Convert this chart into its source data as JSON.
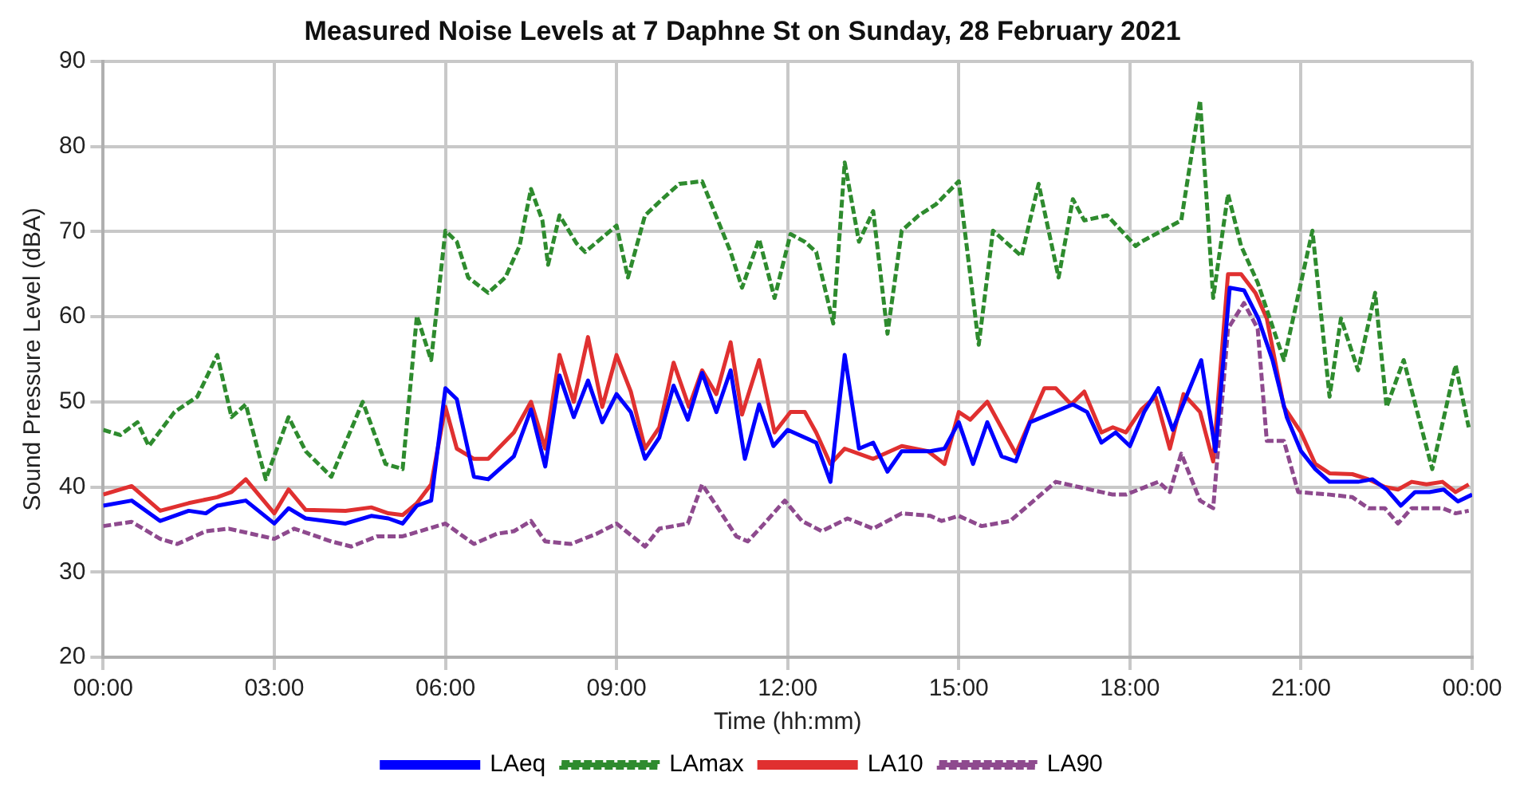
{
  "chart_data": {
    "type": "line",
    "title": "Measured Noise Levels at 7 Daphne St on Sunday, 28 February 2021",
    "xlabel": "Time (hh:mm)",
    "ylabel": "Sound Pressure Level (dBA)",
    "xlim": [
      0,
      24
    ],
    "xticks": [
      {
        "value": 0,
        "label": "00:00"
      },
      {
        "value": 3,
        "label": "03:00"
      },
      {
        "value": 6,
        "label": "06:00"
      },
      {
        "value": 9,
        "label": "09:00"
      },
      {
        "value": 12,
        "label": "12:00"
      },
      {
        "value": 15,
        "label": "15:00"
      },
      {
        "value": 18,
        "label": "18:00"
      },
      {
        "value": 21,
        "label": "21:00"
      },
      {
        "value": 24,
        "label": "00:00"
      }
    ],
    "ylim": [
      20,
      90
    ],
    "yticks": [
      20,
      30,
      40,
      50,
      60,
      70,
      80,
      90
    ],
    "grid": true,
    "legend": "bottom",
    "marker": "none",
    "series": [
      {
        "name": "LAeq",
        "color": "#0000ff",
        "line_style": "solid",
        "x": [
          0,
          0.5,
          1,
          1.5,
          1.8,
          2,
          2.25,
          2.5,
          3,
          3.25,
          3.55,
          4.25,
          4.7,
          5,
          5.25,
          5.5,
          5.75,
          6,
          6.2,
          6.5,
          6.75,
          7.2,
          7.5,
          7.75,
          8,
          8.25,
          8.5,
          8.75,
          9,
          9.25,
          9.5,
          9.75,
          10,
          10.25,
          10.5,
          10.75,
          11,
          11.25,
          11.5,
          11.75,
          12,
          12.5,
          12.75,
          13,
          13.25,
          13.5,
          13.75,
          14,
          14.5,
          14.75,
          15,
          15.25,
          15.5,
          15.75,
          16,
          16.25,
          17,
          17.25,
          17.5,
          17.75,
          18,
          18.25,
          18.5,
          18.75,
          19.25,
          19.5,
          19.75,
          20,
          20.25,
          20.5,
          20.75,
          21,
          21.25,
          21.5,
          22,
          22.25,
          22.5,
          22.75,
          23,
          23.25,
          23.5,
          23.75,
          24
        ],
        "values": [
          37.8,
          38.4,
          36,
          37.2,
          36.9,
          37.8,
          38.1,
          38.4,
          35.7,
          37.5,
          36.3,
          35.7,
          36.6,
          36.3,
          35.7,
          37.8,
          38.4,
          51.6,
          50.3,
          41.2,
          40.9,
          43.6,
          49.1,
          42.4,
          53.1,
          48.2,
          52.5,
          47.6,
          50.9,
          48.8,
          43.3,
          45.8,
          51.9,
          47.9,
          53.4,
          48.8,
          53.7,
          43.3,
          49.7,
          44.8,
          46.7,
          45.2,
          40.6,
          55.5,
          44.5,
          45.2,
          41.8,
          44.2,
          44.2,
          44.5,
          47.6,
          42.7,
          47.6,
          43.6,
          43,
          47.6,
          49.7,
          48.8,
          45.2,
          46.4,
          44.8,
          48.8,
          51.6,
          46.7,
          54.9,
          44.2,
          63.4,
          63.1,
          59.8,
          54.9,
          48.2,
          44.2,
          42.1,
          40.6,
          40.6,
          40.9,
          39.7,
          37.8,
          39.4,
          39.4,
          39.7,
          38.3,
          39.1
        ]
      },
      {
        "name": "LAmax",
        "color": "#2e8b2e",
        "line_style": "dashed",
        "x": [
          0,
          0.3,
          0.6,
          0.8,
          1.25,
          1.65,
          2,
          2.25,
          2.5,
          2.85,
          3.25,
          3.55,
          4,
          4.55,
          4.95,
          5.25,
          5.5,
          5.75,
          6,
          6.2,
          6.4,
          6.75,
          7.05,
          7.3,
          7.5,
          7.7,
          7.8,
          8,
          8.3,
          8.45,
          9,
          9.2,
          9.5,
          9.8,
          10.1,
          10.5,
          11,
          11.2,
          11.5,
          11.77,
          12.05,
          12.3,
          12.5,
          12.8,
          13,
          13.25,
          13.5,
          13.75,
          14,
          14.3,
          14.6,
          15,
          15.25,
          15.35,
          15.6,
          16.1,
          16.4,
          16.75,
          17,
          17.2,
          17.6,
          18.1,
          18.2,
          18.9,
          19.23,
          19.46,
          19.72,
          19.95,
          20.24,
          20.7,
          21.2,
          21.5,
          21.7,
          22,
          22.3,
          22.5,
          22.8,
          23.3,
          23.71,
          23.94
        ],
        "values": [
          46.7,
          46.1,
          47.6,
          44.8,
          48.8,
          50.6,
          55.5,
          48.2,
          49.7,
          40.9,
          48.2,
          44.2,
          41.2,
          50,
          42.7,
          42.1,
          60.1,
          54.9,
          70.1,
          68.8,
          64.6,
          62.8,
          64.6,
          68.3,
          75,
          71.3,
          66.1,
          71.9,
          68.6,
          67.6,
          70.7,
          64.6,
          71.9,
          73.8,
          75.6,
          75.9,
          67.6,
          63.4,
          69.1,
          62.2,
          69.7,
          68.8,
          67.6,
          59.2,
          78.1,
          68.8,
          72.4,
          58,
          70.1,
          71.9,
          73.2,
          75.9,
          62.2,
          56.7,
          70.1,
          67.1,
          75.6,
          64.6,
          73.8,
          71.3,
          71.9,
          68.3,
          68.8,
          71.3,
          85.4,
          62.2,
          74.4,
          68.3,
          64,
          54.9,
          70.1,
          50.6,
          59.8,
          53.7,
          62.8,
          49.4,
          54.9,
          42.1,
          54.3,
          47
        ]
      },
      {
        "name": "LA10",
        "color": "#e03030",
        "line_style": "solid",
        "x": [
          0,
          0.5,
          1,
          1.5,
          2,
          2.25,
          2.5,
          3,
          3.25,
          3.55,
          4.25,
          4.7,
          5,
          5.25,
          5.5,
          5.75,
          6,
          6.2,
          6.5,
          6.75,
          7.2,
          7.5,
          7.75,
          8,
          8.25,
          8.5,
          8.75,
          9,
          9.25,
          9.5,
          9.75,
          10,
          10.27,
          10.5,
          10.75,
          11,
          11.2,
          11.5,
          11.77,
          12.05,
          12.3,
          12.5,
          12.75,
          13,
          13.5,
          14,
          14.46,
          14.75,
          15,
          15.2,
          15.5,
          16,
          16.5,
          16.7,
          16.97,
          17.2,
          17.5,
          17.7,
          17.93,
          18.2,
          18.45,
          18.7,
          18.94,
          19.23,
          19.46,
          19.72,
          19.95,
          20.2,
          20.4,
          20.7,
          21,
          21.25,
          21.5,
          21.9,
          22.18,
          22.47,
          22.7,
          22.94,
          23.2,
          23.48,
          23.71,
          23.94
        ],
        "values": [
          39.1,
          40.1,
          37.2,
          38.1,
          38.8,
          39.4,
          40.9,
          36.9,
          39.7,
          37.3,
          37.2,
          37.6,
          36.9,
          36.7,
          38.1,
          40.3,
          49.4,
          44.5,
          43.3,
          43.3,
          46.4,
          50,
          44.5,
          55.5,
          50,
          57.6,
          49.4,
          55.5,
          51.2,
          44.5,
          47,
          54.6,
          49.4,
          53.7,
          50.9,
          57,
          48.5,
          54.9,
          46.4,
          48.8,
          48.8,
          46.4,
          42.7,
          44.5,
          43.3,
          44.8,
          44.2,
          42.7,
          48.8,
          47.9,
          50,
          43.9,
          51.6,
          51.6,
          49.7,
          51.2,
          46.4,
          47,
          46.4,
          49.1,
          50.6,
          44.5,
          50.9,
          48.8,
          43,
          65,
          65,
          62.8,
          59.8,
          49.4,
          46.4,
          42.7,
          41.6,
          41.5,
          40.9,
          40,
          39.7,
          40.6,
          40.3,
          40.6,
          39.4,
          40.3
        ]
      },
      {
        "name": "LA90",
        "color": "#8e4a8e",
        "line_style": "dashed",
        "x": [
          0,
          0.5,
          1,
          1.3,
          1.8,
          2.2,
          2.6,
          3,
          3.35,
          4,
          4.35,
          4.8,
          5.25,
          5.7,
          6,
          6.5,
          6.9,
          7.2,
          7.5,
          7.75,
          8.2,
          8.65,
          9,
          9.5,
          9.75,
          10.25,
          10.5,
          10.75,
          11.1,
          11.3,
          11.55,
          11.95,
          12.25,
          12.6,
          13.05,
          13.5,
          14,
          14.5,
          14.7,
          15,
          15.4,
          15.9,
          16.7,
          17.1,
          17.7,
          17.93,
          18.5,
          18.7,
          18.9,
          19.23,
          19.46,
          19.72,
          20,
          20.24,
          20.4,
          20.7,
          20.95,
          21.5,
          21.9,
          22.18,
          22.47,
          22.7,
          22.94,
          23.48,
          23.71,
          23.94
        ],
        "values": [
          35.4,
          35.9,
          33.9,
          33.3,
          34.8,
          35.1,
          34.5,
          33.9,
          35.1,
          33.6,
          33,
          34.2,
          34.2,
          35.1,
          35.7,
          33.3,
          34.5,
          34.8,
          36,
          33.6,
          33.3,
          34.5,
          35.7,
          33,
          35.1,
          35.7,
          40.3,
          37.8,
          34.2,
          33.6,
          35.4,
          38.4,
          36,
          34.8,
          36.3,
          35.1,
          36.9,
          36.6,
          36,
          36.6,
          35.4,
          36,
          40.6,
          40,
          39.1,
          39.1,
          40.6,
          39.4,
          43.9,
          38.4,
          37.5,
          58.6,
          61.6,
          58.6,
          45.4,
          45.4,
          39.4,
          39.1,
          38.8,
          37.5,
          37.5,
          35.7,
          37.5,
          37.5,
          36.9,
          37.2
        ]
      }
    ]
  }
}
